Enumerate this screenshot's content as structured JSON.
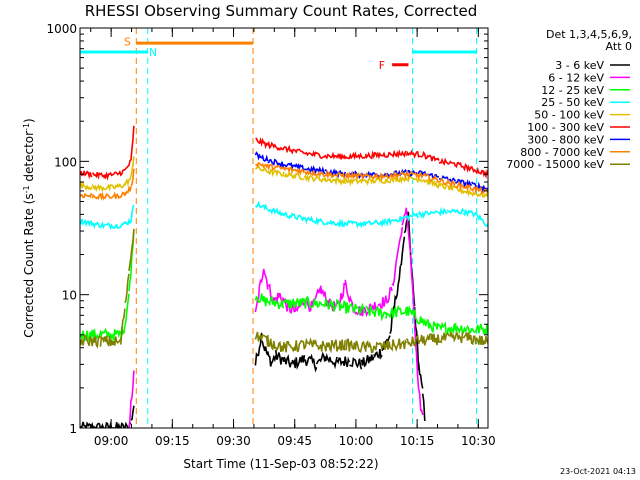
{
  "chart_data": {
    "type": "line",
    "title": "RHESSI Observing Summary Count Rates, Corrected",
    "xlabel": "Start Time (11-Sep-03 08:52:22)",
    "ylabel_prefix": "Corrected Count Rate (s",
    "ylabel_sup1": "-1",
    "ylabel_mid": " detector",
    "ylabel_sup2": "-1",
    "ylabel_suffix": ")",
    "x_unit": "minutes after 08:52:22",
    "xlim": [
      0,
      100
    ],
    "ylim": [
      1,
      1000
    ],
    "yscale": "log",
    "x_ticks": [
      {
        "t": 7.63,
        "label": "09:00"
      },
      {
        "t": 22.63,
        "label": "09:15"
      },
      {
        "t": 37.63,
        "label": "09:30"
      },
      {
        "t": 52.63,
        "label": "09:45"
      },
      {
        "t": 67.63,
        "label": "10:00"
      },
      {
        "t": 82.63,
        "label": "10:15"
      },
      {
        "t": 97.63,
        "label": "10:30"
      }
    ],
    "y_ticks": [
      {
        "v": 1,
        "label": "1"
      },
      {
        "v": 10,
        "label": "10"
      },
      {
        "v": 100,
        "label": "100"
      },
      {
        "v": 1000,
        "label": "1000"
      }
    ],
    "legend_header": [
      "Det 1,3,4,5,6,9,",
      "Att 0"
    ],
    "series": [
      {
        "name": "3 - 6 keV",
        "color": "#000000",
        "x": [
          0,
          12,
          12.5,
          13.2,
          43,
          44.5,
          45,
          46,
          47,
          48,
          50,
          52,
          55,
          58,
          60,
          63,
          66,
          69,
          72,
          74,
          76,
          77,
          78.5,
          79.5,
          80.5,
          81,
          82,
          83,
          84,
          84.5
        ],
        "y": [
          1,
          1,
          1.1,
          1.5,
          3,
          5,
          4.2,
          3.5,
          3.1,
          3.5,
          3.2,
          3,
          3.3,
          3,
          3.4,
          3.1,
          3.2,
          3,
          3.4,
          3.8,
          5,
          8,
          15,
          28,
          40,
          20,
          8,
          3,
          1.8,
          1.2
        ]
      },
      {
        "name": "6 - 12 keV",
        "color": "#ff00ff",
        "x": [
          12,
          12.5,
          13.2,
          43,
          44,
          45,
          46,
          47.5,
          49,
          51,
          53,
          55,
          57,
          59,
          61,
          63,
          65,
          67,
          69,
          71,
          73,
          75,
          76.5,
          78,
          79,
          80,
          81,
          82,
          83,
          84
        ],
        "y": [
          1,
          1.5,
          2.5,
          7,
          11,
          16,
          12,
          9,
          10,
          8,
          7.5,
          9,
          8,
          11,
          8.5,
          8,
          12,
          8,
          7.5,
          8,
          8.5,
          9,
          11,
          22,
          32,
          45,
          20,
          6,
          1.8,
          1.2
        ]
      },
      {
        "name": "12 - 25 keV",
        "color": "#00ff00",
        "x": [
          0,
          10,
          11,
          12,
          13.2,
          43,
          45,
          50,
          55,
          60,
          65,
          70,
          75,
          80,
          82,
          85,
          88,
          92,
          96,
          100
        ],
        "y": [
          5,
          5,
          6,
          10,
          30,
          10,
          9,
          8.5,
          8.7,
          8.5,
          8,
          7.5,
          7.2,
          7.5,
          7,
          6,
          5.5,
          5.7,
          5.5,
          5.5
        ]
      },
      {
        "name": "25 - 50 keV",
        "color": "#00ffff",
        "x": [
          0,
          3,
          6,
          9,
          11,
          12.5,
          13.2,
          43,
          46,
          50,
          55,
          60,
          65,
          70,
          75,
          80,
          83,
          86,
          90,
          94,
          97,
          100
        ],
        "y": [
          36,
          34,
          33,
          33,
          34,
          36,
          48,
          48,
          44,
          40,
          37,
          35,
          34,
          34,
          35,
          38,
          40,
          41,
          42,
          42,
          40,
          33
        ]
      },
      {
        "name": "50 - 100 keV",
        "color": "#e0c000",
        "x": [
          0,
          3,
          6,
          9,
          11,
          12.5,
          13.2,
          43,
          46,
          50,
          55,
          60,
          65,
          70,
          75,
          80,
          84,
          88,
          92,
          96,
          100
        ],
        "y": [
          66,
          64,
          63,
          64,
          67,
          75,
          110,
          90,
          84,
          80,
          76,
          73,
          71,
          71,
          72,
          75,
          73,
          66,
          62,
          58,
          55
        ]
      },
      {
        "name": "100 - 300 keV",
        "color": "#ff0000",
        "x": [
          0,
          3,
          6,
          9,
          11,
          12.5,
          13.2,
          43,
          46,
          50,
          55,
          60,
          65,
          70,
          75,
          80,
          84,
          88,
          92,
          96,
          100
        ],
        "y": [
          82,
          80,
          78,
          80,
          85,
          100,
          180,
          145,
          133,
          125,
          115,
          110,
          108,
          110,
          112,
          115,
          112,
          100,
          95,
          88,
          80
        ]
      },
      {
        "name": "300 - 800 keV",
        "color": "#0000ff",
        "x": [
          43,
          46,
          50,
          55,
          60,
          65,
          70,
          75,
          80,
          84,
          88,
          92,
          96,
          100
        ],
        "y": [
          112,
          102,
          95,
          88,
          84,
          80,
          79,
          80,
          82,
          81,
          76,
          71,
          67,
          62
        ]
      },
      {
        "name": "800 - 7000 keV",
        "color": "#ff8000",
        "x": [
          0,
          3,
          6,
          9,
          11,
          12.5,
          13.2,
          43,
          46,
          50,
          55,
          60,
          65,
          70,
          75,
          80,
          84,
          88,
          92,
          96,
          100
        ],
        "y": [
          56,
          55,
          54,
          55,
          57,
          63,
          85,
          97,
          92,
          88,
          84,
          80,
          78,
          77,
          78,
          80,
          78,
          72,
          67,
          63,
          58
        ]
      },
      {
        "name": "7000 - 15000 keV",
        "color": "#808000",
        "x": [
          0,
          5,
          10,
          11,
          12,
          13.2,
          43,
          46,
          50,
          55,
          60,
          65,
          70,
          75,
          80,
          83,
          86,
          90,
          94,
          97,
          100
        ],
        "y": [
          4.5,
          4.5,
          4.4,
          8,
          15,
          30,
          5,
          4.5,
          4,
          4.2,
          4.1,
          4.2,
          4,
          4.1,
          4.3,
          4.5,
          4.6,
          4.7,
          4.8,
          4.6,
          4.4
        ]
      }
    ],
    "vertical_markers": [
      {
        "t": 13.8,
        "color": "#ff8000",
        "style": "dashed"
      },
      {
        "t": 16.6,
        "color": "#00ffff",
        "style": "dashed"
      },
      {
        "t": 42.4,
        "color": "#ff8000",
        "style": "dashed"
      },
      {
        "t": 81.5,
        "color": "#00ffff",
        "style": "dashed"
      },
      {
        "t": 97.2,
        "color": "#00ffff",
        "style": "dashed"
      }
    ],
    "interval_bars": [
      {
        "t0": 0,
        "t1": 16.6,
        "y": 660,
        "color": "#00ffff"
      },
      {
        "t0": 81.5,
        "t1": 97.2,
        "y": 660,
        "color": "#00ffff"
      },
      {
        "t0": 13.8,
        "t1": 42.4,
        "y": 770,
        "color": "#ff8000"
      },
      {
        "t0": 76.5,
        "t1": 80.5,
        "y": 530,
        "color": "#ff0000"
      }
    ],
    "annotations": [
      {
        "text": "S",
        "t": 11.6,
        "y": 790,
        "color": "#ff8000"
      },
      {
        "text": "N",
        "t": 17.9,
        "y": 660,
        "color": "#00ffff"
      },
      {
        "text": "F",
        "t": 74.0,
        "y": 530,
        "color": "#ff0000"
      }
    ],
    "footer_date": "23-Oct-2021 04:13"
  }
}
